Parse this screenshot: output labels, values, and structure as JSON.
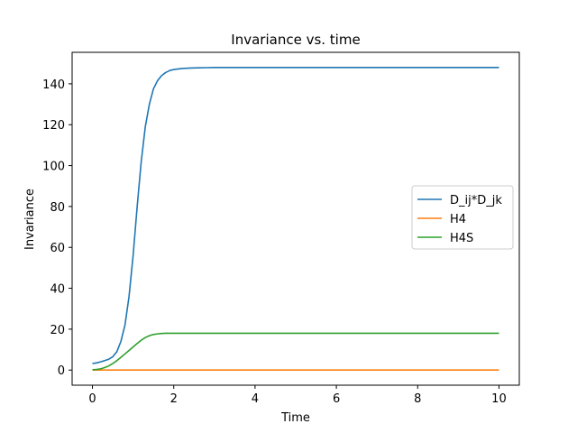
{
  "chart_data": {
    "type": "line",
    "title": "Invariance vs. time",
    "xlabel": "Time",
    "ylabel": "Invariance",
    "xlim": [
      -0.5,
      10.5
    ],
    "ylim": [
      -7.4,
      155.4
    ],
    "xticks": [
      0,
      2,
      4,
      6,
      8,
      10
    ],
    "yticks": [
      0,
      20,
      40,
      60,
      80,
      100,
      120,
      140
    ],
    "grid": false,
    "legend_position": "center-right",
    "series": [
      {
        "name": "D_ij*D_jk",
        "color": "#1f77b4",
        "x": [
          0.0,
          0.1,
          0.2,
          0.3,
          0.4,
          0.5,
          0.6,
          0.7,
          0.8,
          0.9,
          1.0,
          1.1,
          1.2,
          1.3,
          1.4,
          1.5,
          1.6,
          1.7,
          1.8,
          1.9,
          2.0,
          2.2,
          2.4,
          2.6,
          2.8,
          3.0,
          4.0,
          5.0,
          6.0,
          7.0,
          8.0,
          9.0,
          10.0
        ],
        "y": [
          3.2,
          3.5,
          4.0,
          4.6,
          5.3,
          6.5,
          9,
          14,
          22,
          36,
          56,
          80,
          102,
          119,
          130,
          137.5,
          141.5,
          144,
          145.5,
          146.5,
          147,
          147.5,
          147.7,
          147.8,
          147.9,
          148,
          148,
          148,
          148,
          148,
          148,
          148,
          148
        ]
      },
      {
        "name": "H4",
        "color": "#ff7f0e",
        "x": [
          0,
          10
        ],
        "y": [
          0,
          0
        ]
      },
      {
        "name": "H4S",
        "color": "#2ca02c",
        "x": [
          0.0,
          0.1,
          0.2,
          0.3,
          0.4,
          0.5,
          0.6,
          0.7,
          0.8,
          0.9,
          1.0,
          1.1,
          1.2,
          1.3,
          1.4,
          1.5,
          1.6,
          1.7,
          1.8,
          2.0,
          2.2,
          2.5,
          3.0,
          4.0,
          6.0,
          8.0,
          10.0
        ],
        "y": [
          0.2,
          0.3,
          0.6,
          1.2,
          2.0,
          3.2,
          4.6,
          6.2,
          7.9,
          9.6,
          11.3,
          13.0,
          14.6,
          15.9,
          16.8,
          17.4,
          17.7,
          17.9,
          18.0,
          18.0,
          18.0,
          18.0,
          18.0,
          18.0,
          18.0,
          18.0,
          18.0
        ]
      }
    ]
  }
}
